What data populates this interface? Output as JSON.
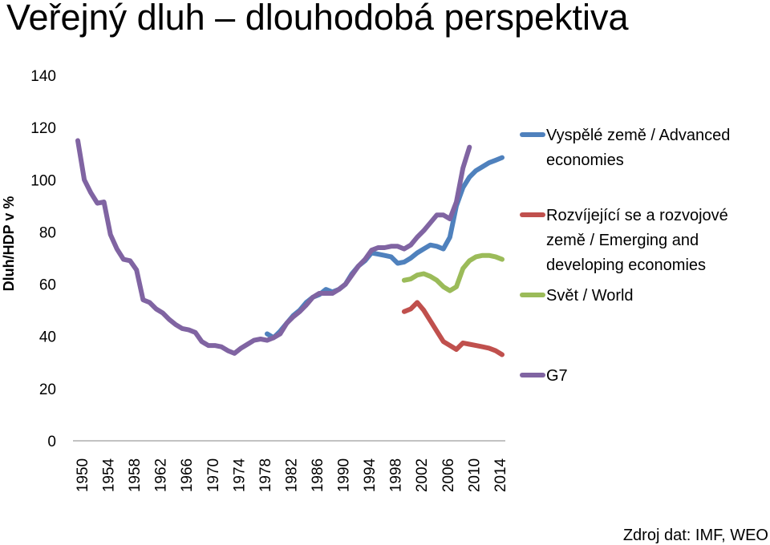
{
  "header": {
    "title": "Veřejný dluh – dlouhodobá perspektiva"
  },
  "footer": {
    "source": "Zdroj dat: IMF, WEO"
  },
  "colors": {
    "advanced": "#4F81BD",
    "emerging": "#C0504D",
    "world": "#9BBB59",
    "g7": "#8064A2"
  },
  "chart_data": {
    "type": "line",
    "title": "Veřejný dluh – dlouhodobá perspektiva",
    "xlabel": "",
    "ylabel": "Dluh/HDP v %",
    "xlim": [
      1950,
      2015
    ],
    "ylim": [
      0,
      140
    ],
    "yticks": [
      0,
      20,
      40,
      60,
      80,
      100,
      120,
      140
    ],
    "xticks": [
      1950,
      1954,
      1958,
      1962,
      1966,
      1970,
      1974,
      1978,
      1982,
      1986,
      1990,
      1994,
      1998,
      2002,
      2006,
      2010,
      2014
    ],
    "series": [
      {
        "name": "Vyspělé země / Advanced economies",
        "legend_lines": [
          "Vyspělé země / Advanced",
          "economies"
        ],
        "color_key": "advanced",
        "points": [
          [
            1979,
            41
          ],
          [
            1980,
            39.5
          ],
          [
            1981,
            42
          ],
          [
            1982,
            45
          ],
          [
            1983,
            48
          ],
          [
            1984,
            50
          ],
          [
            1985,
            53
          ],
          [
            1986,
            55
          ],
          [
            1987,
            56
          ],
          [
            1988,
            58
          ],
          [
            1989,
            57
          ],
          [
            1990,
            58
          ],
          [
            1991,
            60
          ],
          [
            1992,
            64
          ],
          [
            1993,
            67
          ],
          [
            1994,
            69
          ],
          [
            1995,
            72
          ],
          [
            1996,
            71.5
          ],
          [
            1997,
            71
          ],
          [
            1998,
            70.5
          ],
          [
            1999,
            68
          ],
          [
            2000,
            68.5
          ],
          [
            2001,
            70
          ],
          [
            2002,
            72
          ],
          [
            2003,
            73.5
          ],
          [
            2004,
            75
          ],
          [
            2005,
            74.5
          ],
          [
            2006,
            73.5
          ],
          [
            2007,
            78
          ],
          [
            2008,
            90
          ],
          [
            2009,
            97
          ],
          [
            2010,
            101
          ],
          [
            2011,
            103.5
          ],
          [
            2012,
            105
          ],
          [
            2013,
            106.5
          ],
          [
            2014,
            107.5
          ],
          [
            2015,
            108.5
          ]
        ]
      },
      {
        "name": "Rozvíjející se a rozvojové země / Emerging and developing economies",
        "legend_lines": [
          "Rozvíjející se a rozvojové",
          "země / Emerging and",
          "developing economies"
        ],
        "color_key": "emerging",
        "points": [
          [
            2000,
            49.5
          ],
          [
            2001,
            50.5
          ],
          [
            2002,
            53
          ],
          [
            2003,
            50
          ],
          [
            2004,
            46
          ],
          [
            2005,
            42
          ],
          [
            2006,
            38
          ],
          [
            2007,
            36.5
          ],
          [
            2008,
            35
          ],
          [
            2009,
            37.5
          ],
          [
            2010,
            37
          ],
          [
            2011,
            36.5
          ],
          [
            2012,
            36
          ],
          [
            2013,
            35.5
          ],
          [
            2014,
            34.5
          ],
          [
            2015,
            33
          ]
        ]
      },
      {
        "name": "Svět / World",
        "legend_lines": [
          "Svět / World"
        ],
        "color_key": "world",
        "points": [
          [
            2000,
            61.5
          ],
          [
            2001,
            62
          ],
          [
            2002,
            63.5
          ],
          [
            2003,
            64
          ],
          [
            2004,
            63
          ],
          [
            2005,
            61.5
          ],
          [
            2006,
            59
          ],
          [
            2007,
            57.5
          ],
          [
            2008,
            59
          ],
          [
            2009,
            66
          ],
          [
            2010,
            69
          ],
          [
            2011,
            70.5
          ],
          [
            2012,
            71
          ],
          [
            2013,
            71
          ],
          [
            2014,
            70.5
          ],
          [
            2015,
            69.5
          ]
        ]
      },
      {
        "name": "G7",
        "legend_lines": [
          "G7"
        ],
        "color_key": "g7",
        "points": [
          [
            1950,
            115
          ],
          [
            1951,
            100
          ],
          [
            1952,
            95
          ],
          [
            1953,
            91
          ],
          [
            1954,
            91.5
          ],
          [
            1955,
            79
          ],
          [
            1956,
            73.5
          ],
          [
            1957,
            69.5
          ],
          [
            1958,
            69
          ],
          [
            1959,
            65.5
          ],
          [
            1960,
            54
          ],
          [
            1961,
            53
          ],
          [
            1962,
            50.5
          ],
          [
            1963,
            49
          ],
          [
            1964,
            46.5
          ],
          [
            1965,
            44.5
          ],
          [
            1966,
            43
          ],
          [
            1967,
            42.5
          ],
          [
            1968,
            41.5
          ],
          [
            1969,
            38
          ],
          [
            1970,
            36.5
          ],
          [
            1971,
            36.5
          ],
          [
            1972,
            36
          ],
          [
            1973,
            34.5
          ],
          [
            1974,
            33.5
          ],
          [
            1975,
            35.5
          ],
          [
            1976,
            37
          ],
          [
            1977,
            38.5
          ],
          [
            1978,
            39
          ],
          [
            1979,
            38.5
          ],
          [
            1980,
            39.5
          ],
          [
            1981,
            41
          ],
          [
            1982,
            45
          ],
          [
            1983,
            47.5
          ],
          [
            1984,
            49.5
          ],
          [
            1985,
            52
          ],
          [
            1986,
            55
          ],
          [
            1987,
            56.5
          ],
          [
            1988,
            56.5
          ],
          [
            1989,
            56.5
          ],
          [
            1990,
            58
          ],
          [
            1991,
            60
          ],
          [
            1992,
            63.5
          ],
          [
            1993,
            67
          ],
          [
            1994,
            69.5
          ],
          [
            1995,
            73
          ],
          [
            1996,
            74
          ],
          [
            1997,
            74
          ],
          [
            1998,
            74.5
          ],
          [
            1999,
            74.5
          ],
          [
            2000,
            73.5
          ],
          [
            2001,
            75
          ],
          [
            2002,
            78
          ],
          [
            2003,
            80.5
          ],
          [
            2004,
            83.5
          ],
          [
            2005,
            86.5
          ],
          [
            2006,
            86.5
          ],
          [
            2007,
            85
          ],
          [
            2008,
            91.5
          ],
          [
            2009,
            104.5
          ],
          [
            2010,
            112.5
          ]
        ]
      }
    ]
  }
}
